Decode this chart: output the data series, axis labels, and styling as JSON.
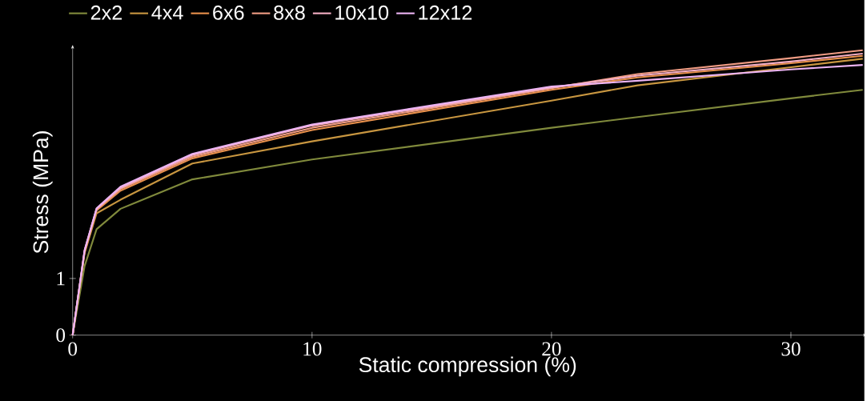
{
  "chart_data": {
    "type": "line",
    "xlabel": "Static compression (%)",
    "ylabel": "Stress (MPa)",
    "xlim": [
      0,
      33
    ],
    "ylim": [
      0,
      5.05
    ],
    "xticks": [
      0,
      10,
      20,
      30
    ],
    "yticks": [
      0,
      1
    ],
    "grid": false,
    "legend": "top",
    "marker": "none",
    "line_style": "solid",
    "x": [
      0,
      0.5,
      1,
      2,
      5,
      10,
      20,
      23.6,
      30,
      33
    ],
    "series": [
      {
        "name": "2x2",
        "color": "#808a3c",
        "values": [
          0,
          1.22,
          1.87,
          2.23,
          2.75,
          3.1,
          3.66,
          3.85,
          4.18,
          4.33
        ]
      },
      {
        "name": "4x4",
        "color": "#c89640",
        "values": [
          0,
          1.45,
          2.15,
          2.39,
          3.03,
          3.42,
          4.14,
          4.41,
          4.73,
          4.88
        ]
      },
      {
        "name": "6x6",
        "color": "#e8904c",
        "values": [
          0,
          1.47,
          2.2,
          2.55,
          3.12,
          3.62,
          4.33,
          4.55,
          4.8,
          4.93
        ]
      },
      {
        "name": "8x8",
        "color": "#f09c84",
        "values": [
          0,
          1.48,
          2.22,
          2.58,
          3.15,
          3.66,
          4.36,
          4.61,
          4.89,
          5.03
        ]
      },
      {
        "name": "10x10",
        "color": "#f4aec4",
        "values": [
          0,
          1.5,
          2.23,
          2.6,
          3.18,
          3.7,
          4.37,
          4.58,
          4.83,
          4.97
        ]
      },
      {
        "name": "12x12",
        "color": "#ecb4f4",
        "values": [
          0,
          1.5,
          2.24,
          2.62,
          3.2,
          3.72,
          4.39,
          4.49,
          4.69,
          4.77
        ]
      }
    ]
  }
}
